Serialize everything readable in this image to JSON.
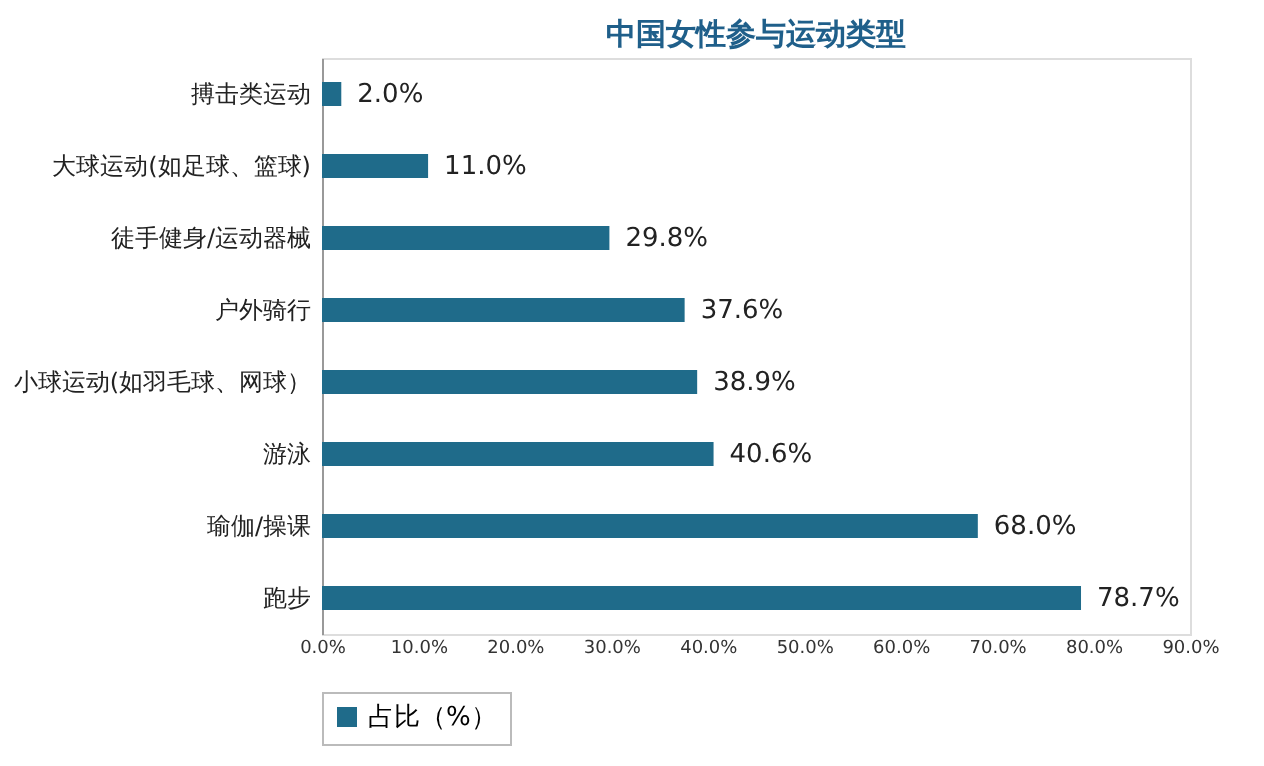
{
  "chart_data": {
    "type": "bar",
    "orientation": "horizontal",
    "title": "中国女性参与运动类型",
    "categories": [
      "搏击类运动",
      "大球运动(如足球、篮球)",
      "徒手健身/运动器械",
      "户外骑行",
      "小球运动(如羽毛球、网球）",
      "游泳",
      "瑜伽/操课",
      "跑步"
    ],
    "series": [
      {
        "name": "占比（%）",
        "color": "#1f6b8a",
        "values": [
          2.0,
          11.0,
          29.8,
          37.6,
          38.9,
          40.6,
          68.0,
          78.7
        ],
        "value_labels": [
          "2.0%",
          "11.0%",
          "29.8%",
          "37.6%",
          "38.9%",
          "40.6%",
          "68.0%",
          "78.7%"
        ]
      }
    ],
    "xlim": [
      0,
      90
    ],
    "xticks": [
      {
        "value": 0,
        "label": "0.0%"
      },
      {
        "value": 10,
        "label": "10.0%"
      },
      {
        "value": 20,
        "label": "20.0%"
      },
      {
        "value": 30,
        "label": "30.0%"
      },
      {
        "value": 40,
        "label": "40.0%"
      },
      {
        "value": 50,
        "label": "50.0%"
      },
      {
        "value": 60,
        "label": "60.0%"
      },
      {
        "value": 70,
        "label": "70.0%"
      },
      {
        "value": 80,
        "label": "80.0%"
      },
      {
        "value": 90,
        "label": "90.0%"
      }
    ],
    "grid": false,
    "legend": "bottom"
  }
}
